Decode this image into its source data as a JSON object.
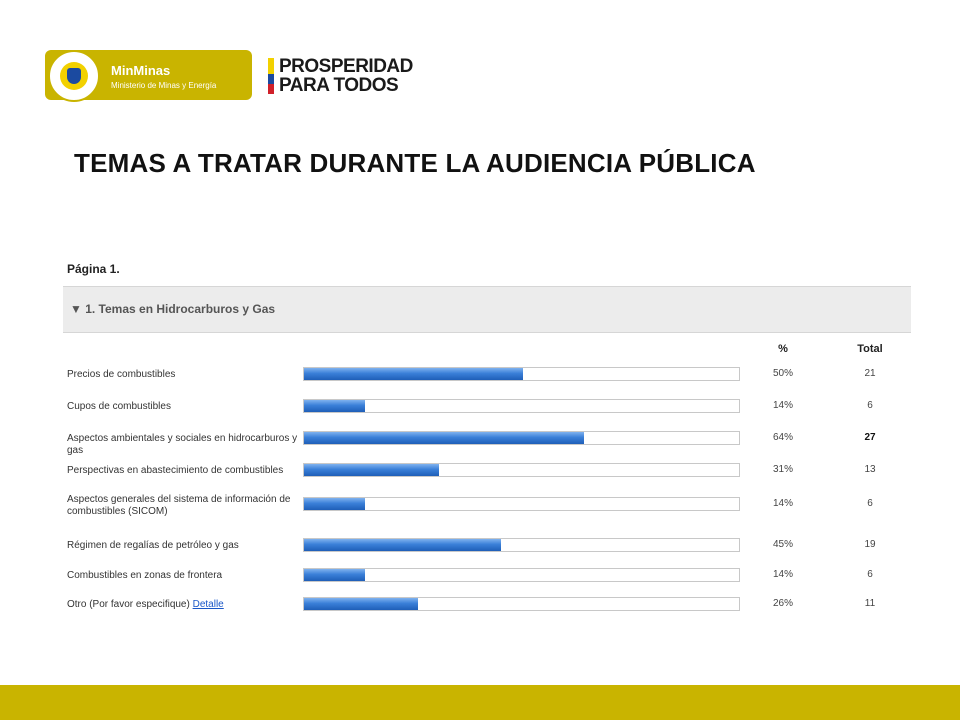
{
  "header": {
    "minminas_name": "MinMinas",
    "minminas_subtitle": "Ministerio de Minas y Energía",
    "prosperidad_line1": "PROSPERIDAD",
    "prosperidad_line2": "PARA TODOS"
  },
  "slide_title": "TEMAS A TRATAR DURANTE LA AUDIENCIA PÚBLICA",
  "survey": {
    "page_label": "Página 1.",
    "section_title": "▼ 1. Temas en Hidrocarburos y Gas",
    "col_pct": "%",
    "col_total": "Total",
    "detail_link": "Detalle"
  },
  "colors": {
    "brand_gold": "#c9b400",
    "bar_blue": "#2f72d0",
    "section_bg": "#ececec"
  },
  "chart_data": {
    "type": "bar",
    "orientation": "horizontal",
    "categories": [
      "Precios de combustibles",
      "Cupos de combustibles",
      "Aspectos ambientales y sociales en hidrocarburos y gas",
      "Perspectivas en abastecimiento de combustibles",
      "Aspectos generales del sistema de información de combustibles (SICOM)",
      "Régimen de regalías de petróleo y gas",
      "Combustibles en zonas de frontera",
      "Otro (Por favor especifique)"
    ],
    "percent_labels": [
      "50%",
      "14%",
      "64%",
      "31%",
      "14%",
      "45%",
      "14%",
      "26%"
    ],
    "percent_values": [
      50,
      14,
      64,
      31,
      14,
      45,
      14,
      26
    ],
    "totals": [
      "21",
      "6",
      "27",
      "13",
      "6",
      "19",
      "6",
      "11"
    ],
    "xlim": [
      0,
      100
    ]
  }
}
